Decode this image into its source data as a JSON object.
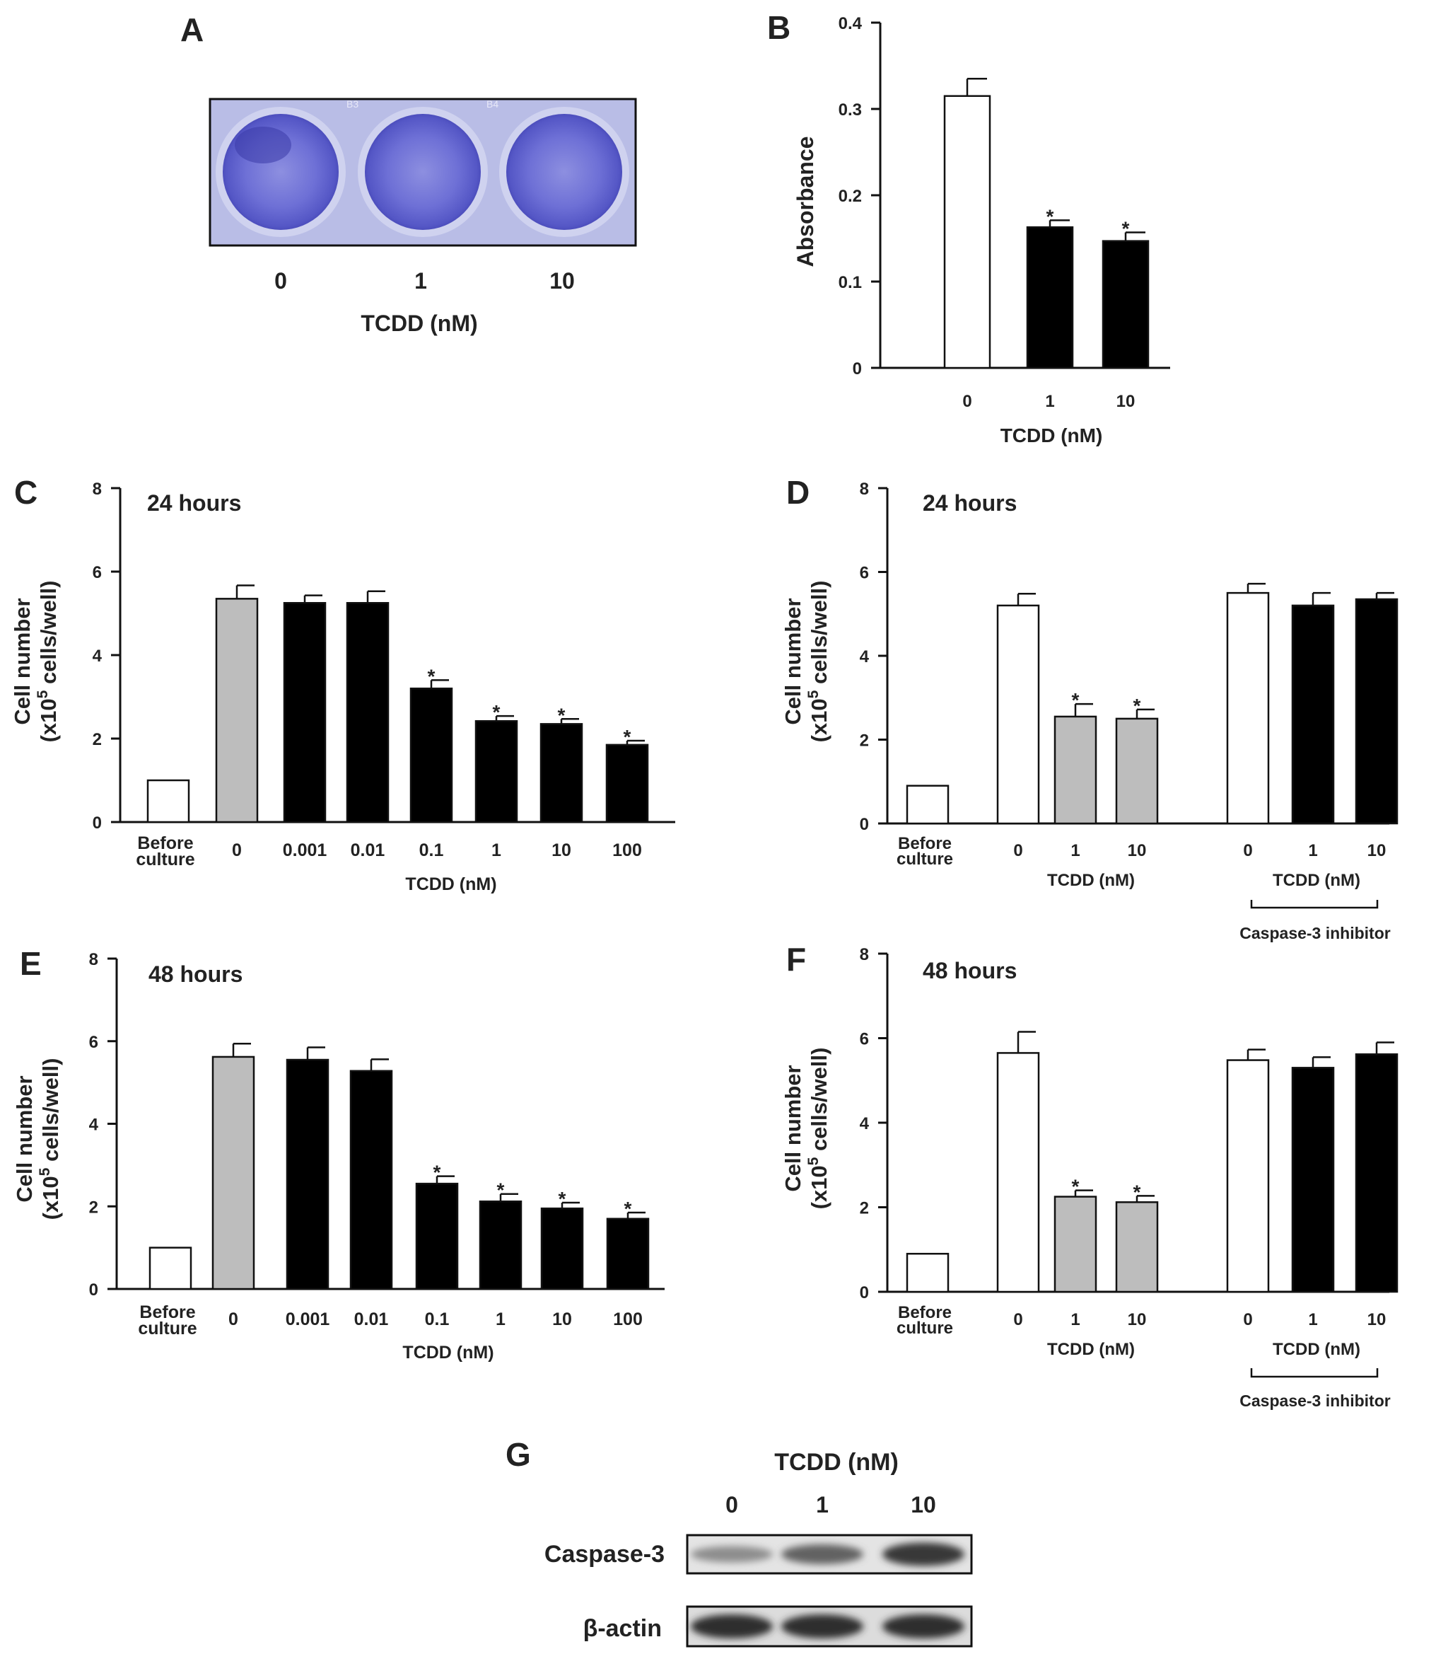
{
  "panels": {
    "A": {
      "letter": "A",
      "categories": [
        "0",
        "1",
        "10"
      ],
      "xlabel": "TCDD (nM)",
      "well_labels": [
        "B3",
        "B4"
      ],
      "colors": {
        "stain": "#5a5cc8",
        "stain_dark": "#3b3aa8",
        "plate_bg": "#b9bde6"
      }
    },
    "G": {
      "letter": "G",
      "title": "TCDD (nM)",
      "lanes": [
        "0",
        "1",
        "10"
      ],
      "rows": [
        {
          "label": "Caspase-3",
          "intensity": [
            0.35,
            0.6,
            0.85
          ]
        },
        {
          "label": "β-actin",
          "intensity": [
            0.9,
            0.9,
            0.9
          ]
        }
      ]
    }
  },
  "chart_data": [
    {
      "panel": "B",
      "letter": "B",
      "type": "bar",
      "categories": [
        "0",
        "1",
        "10"
      ],
      "values": [
        0.315,
        0.163,
        0.147
      ],
      "errors": [
        0.02,
        0.008,
        0.01
      ],
      "fills": [
        "white",
        "black",
        "black"
      ],
      "significant": [
        false,
        true,
        true
      ],
      "ylabel": "Absorbance",
      "xlabel": "TCDD (nM)",
      "ylim": [
        0,
        0.4
      ],
      "yticks": [
        0,
        0.1,
        0.2,
        0.3,
        0.4
      ],
      "ytick_labels": [
        "0",
        "0.1",
        "0.2",
        "0.3",
        "0.4"
      ],
      "grid": false
    },
    {
      "panel": "C",
      "letter": "C",
      "type": "bar",
      "annotation": "24 hours",
      "categories": [
        "Before culture",
        "0",
        "0.001",
        "0.01",
        "0.1",
        "1",
        "10",
        "100"
      ],
      "values": [
        1.0,
        5.35,
        5.25,
        5.25,
        3.2,
        2.42,
        2.35,
        1.85
      ],
      "errors": [
        0,
        0.32,
        0.18,
        0.28,
        0.2,
        0.12,
        0.12,
        0.1
      ],
      "fills": [
        "white",
        "gray",
        "black",
        "black",
        "black",
        "black",
        "black",
        "black"
      ],
      "significant": [
        false,
        false,
        false,
        false,
        true,
        true,
        true,
        true
      ],
      "ylabel": "Cell number (x10⁵ cells/well)",
      "ylabel_line1": "Cell number",
      "ylabel_line2_pre": "(x10",
      "ylabel_sup": "5",
      "ylabel_line2_post": " cells/well)",
      "xlabel": "TCDD (nM)",
      "ylim": [
        0,
        8
      ],
      "yticks": [
        0,
        2,
        4,
        6,
        8
      ],
      "grid": false
    },
    {
      "panel": "D",
      "letter": "D",
      "type": "bar",
      "annotation": "24 hours",
      "categories": [
        "Before culture",
        "0",
        "1",
        "10",
        "0",
        "1",
        "10"
      ],
      "values": [
        0.9,
        5.2,
        2.55,
        2.5,
        5.5,
        5.2,
        5.35
      ],
      "errors": [
        0,
        0.28,
        0.3,
        0.22,
        0.22,
        0.3,
        0.15
      ],
      "fills": [
        "white",
        "white",
        "gray",
        "gray",
        "white",
        "black",
        "black"
      ],
      "significant": [
        false,
        false,
        true,
        true,
        false,
        false,
        false
      ],
      "ylabel": "Cell number (x10⁵ cells/well)",
      "ylabel_line1": "Cell number",
      "ylabel_line2_pre": "(x10",
      "ylabel_sup": "5",
      "ylabel_line2_post": " cells/well)",
      "xlabel": "TCDD (nM)",
      "group_label": "Caspase-3 inhibitor",
      "ylim": [
        0,
        8
      ],
      "yticks": [
        0,
        2,
        4,
        6,
        8
      ],
      "grid": false
    },
    {
      "panel": "E",
      "letter": "E",
      "type": "bar",
      "annotation": "48 hours",
      "categories": [
        "Before culture",
        "0",
        "0.001",
        "0.01",
        "0.1",
        "1",
        "10",
        "100"
      ],
      "values": [
        1.0,
        5.62,
        5.55,
        5.28,
        2.55,
        2.12,
        1.95,
        1.7
      ],
      "errors": [
        0,
        0.32,
        0.3,
        0.28,
        0.18,
        0.18,
        0.14,
        0.15
      ],
      "fills": [
        "white",
        "gray",
        "black",
        "black",
        "black",
        "black",
        "black",
        "black"
      ],
      "significant": [
        false,
        false,
        false,
        false,
        true,
        true,
        true,
        true
      ],
      "ylabel": "Cell number (x10⁵ cells/well)",
      "ylabel_line1": "Cell number",
      "ylabel_line2_pre": "(x10",
      "ylabel_sup": "5",
      "ylabel_line2_post": " cells/well)",
      "xlabel": "TCDD (nM)",
      "ylim": [
        0,
        8
      ],
      "yticks": [
        0,
        2,
        4,
        6,
        8
      ],
      "grid": false
    },
    {
      "panel": "F",
      "letter": "F",
      "type": "bar",
      "annotation": "48 hours",
      "categories": [
        "Before culture",
        "0",
        "1",
        "10",
        "0",
        "1",
        "10"
      ],
      "values": [
        0.9,
        5.65,
        2.25,
        2.12,
        5.48,
        5.3,
        5.62
      ],
      "errors": [
        0,
        0.5,
        0.15,
        0.15,
        0.25,
        0.25,
        0.28
      ],
      "fills": [
        "white",
        "white",
        "gray",
        "gray",
        "white",
        "black",
        "black"
      ],
      "significant": [
        false,
        false,
        true,
        true,
        false,
        false,
        false
      ],
      "ylabel": "Cell number (x10⁵ cells/well)",
      "ylabel_line1": "Cell number",
      "ylabel_line2_pre": "(x10",
      "ylabel_sup": "5",
      "ylabel_line2_post": " cells/well)",
      "xlabel": "TCDD (nM)",
      "group_label": "Caspase-3 inhibitor",
      "ylim": [
        0,
        8
      ],
      "yticks": [
        0,
        2,
        4,
        6,
        8
      ],
      "grid": false
    }
  ]
}
